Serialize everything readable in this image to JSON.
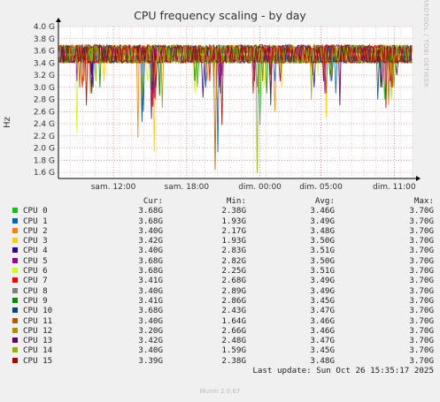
{
  "title": "CPU frequency scaling - by day",
  "side_brand": "RRDTOOL / TOBI OETIKER",
  "footer": "Munin 2.0.67",
  "colors": {
    "background": "#f0f0f0",
    "plot_background": "#ffffff",
    "grid": "#e06666",
    "axis": "#000000"
  },
  "legend": {
    "headers": {
      "cur": "Cur:",
      "min": "Min:",
      "avg": "Avg:",
      "max": "Max:"
    },
    "last_update": "Last update: Sun Oct 26 15:35:17 2025"
  },
  "chart_data": {
    "type": "line",
    "title": "CPU frequency scaling - by day",
    "xlabel": "",
    "ylabel": "Hz",
    "ylim": [
      1.5,
      4.0
    ],
    "y_ticks": [
      1.6,
      1.8,
      2.0,
      2.2,
      2.4,
      2.6,
      2.8,
      3.0,
      3.2,
      3.4,
      3.6,
      3.8,
      4.0
    ],
    "y_tick_labels": [
      "1.6 G",
      "1.8 G",
      "2.0 G",
      "2.2 G",
      "2.4 G",
      "2.6 G",
      "2.8 G",
      "3.0 G",
      "3.2 G",
      "3.4 G",
      "3.6 G",
      "3.8 G",
      "4.0 G"
    ],
    "x_tick_labels": [
      "sam. 12:00",
      "sam. 18:00",
      "dim. 00:00",
      "dim. 05:00",
      "dim. 11:00"
    ],
    "grid": true,
    "series": [
      {
        "name": "CPU 0",
        "color": "#00cc00",
        "cur": "3.68G",
        "min": "2.38G",
        "avg": "3.46G",
        "max": "3.70G",
        "dips": [
          2.9,
          2.95,
          3.05,
          2.38,
          3.1,
          2.8
        ]
      },
      {
        "name": "CPU 1",
        "color": "#0066b3",
        "cur": "3.68G",
        "min": "1.93G",
        "avg": "3.49G",
        "max": "3.70G",
        "dips": [
          3.0,
          2.6,
          1.93,
          3.1,
          2.9,
          2.8
        ]
      },
      {
        "name": "CPU 2",
        "color": "#ff8000",
        "cur": "3.40G",
        "min": "2.17G",
        "avg": "3.48G",
        "max": "3.70G",
        "dips": [
          2.9,
          2.17,
          3.1,
          2.6,
          3.0,
          2.7
        ]
      },
      {
        "name": "CPU 3",
        "color": "#ffcc00",
        "cur": "3.42G",
        "min": "1.93G",
        "avg": "3.50G",
        "max": "3.70G",
        "dips": [
          3.1,
          1.93,
          2.8,
          3.0,
          2.5,
          3.2
        ]
      },
      {
        "name": "CPU 4",
        "color": "#330099",
        "cur": "3.40G",
        "min": "2.83G",
        "avg": "3.51G",
        "max": "3.70G",
        "dips": [
          3.2,
          2.9,
          2.83,
          3.1,
          3.0,
          3.2
        ]
      },
      {
        "name": "CPU 5",
        "color": "#990099",
        "cur": "3.68G",
        "min": "2.82G",
        "avg": "3.50G",
        "max": "3.70G",
        "dips": [
          3.1,
          2.82,
          3.0,
          3.2,
          2.9,
          3.1
        ]
      },
      {
        "name": "CPU 6",
        "color": "#ccff00",
        "cur": "3.68G",
        "min": "2.25G",
        "avg": "3.51G",
        "max": "3.70G",
        "dips": [
          2.25,
          3.1,
          2.9,
          3.0,
          3.2,
          2.8
        ]
      },
      {
        "name": "CPU 7",
        "color": "#ff0000",
        "cur": "3.41G",
        "min": "2.68G",
        "avg": "3.49G",
        "max": "3.70G",
        "dips": [
          3.0,
          2.68,
          3.1,
          2.9,
          3.2,
          3.0
        ]
      },
      {
        "name": "CPU 8",
        "color": "#808080",
        "cur": "3.40G",
        "min": "2.89G",
        "avg": "3.49G",
        "max": "3.70G",
        "dips": [
          3.1,
          2.89,
          3.2,
          3.0,
          3.1,
          3.0
        ]
      },
      {
        "name": "CPU 9",
        "color": "#008f00",
        "cur": "3.41G",
        "min": "2.86G",
        "avg": "3.45G",
        "max": "3.70G",
        "dips": [
          3.0,
          2.86,
          3.1,
          2.9,
          3.2,
          3.0
        ]
      },
      {
        "name": "CPU 10",
        "color": "#00487d",
        "cur": "3.68G",
        "min": "2.43G",
        "avg": "3.47G",
        "max": "3.70G",
        "dips": [
          2.9,
          2.43,
          3.0,
          2.7,
          3.1,
          2.8
        ]
      },
      {
        "name": "CPU 11",
        "color": "#b35a00",
        "cur": "3.40G",
        "min": "1.64G",
        "avg": "3.46G",
        "max": "3.70G",
        "dips": [
          3.0,
          2.8,
          1.64,
          3.1,
          2.9,
          3.0
        ]
      },
      {
        "name": "CPU 12",
        "color": "#b38f00",
        "cur": "3.20G",
        "min": "2.66G",
        "avg": "3.46G",
        "max": "3.70G",
        "dips": [
          3.1,
          2.66,
          3.0,
          2.9,
          3.2,
          2.8
        ]
      },
      {
        "name": "CPU 13",
        "color": "#6b006b",
        "cur": "3.42G",
        "min": "2.48G",
        "avg": "3.47G",
        "max": "3.70G",
        "dips": [
          3.0,
          2.48,
          2.9,
          3.1,
          2.7,
          3.0
        ]
      },
      {
        "name": "CPU 14",
        "color": "#8fb300",
        "cur": "3.40G",
        "min": "1.59G",
        "avg": "3.45G",
        "max": "3.70G",
        "dips": [
          3.1,
          2.9,
          3.0,
          1.59,
          2.8,
          3.0
        ]
      },
      {
        "name": "CPU 15",
        "color": "#b30000",
        "cur": "3.39G",
        "min": "2.38G",
        "avg": "3.48G",
        "max": "3.70G",
        "dips": [
          2.7,
          3.0,
          2.38,
          2.9,
          3.1,
          2.66
        ]
      }
    ]
  }
}
